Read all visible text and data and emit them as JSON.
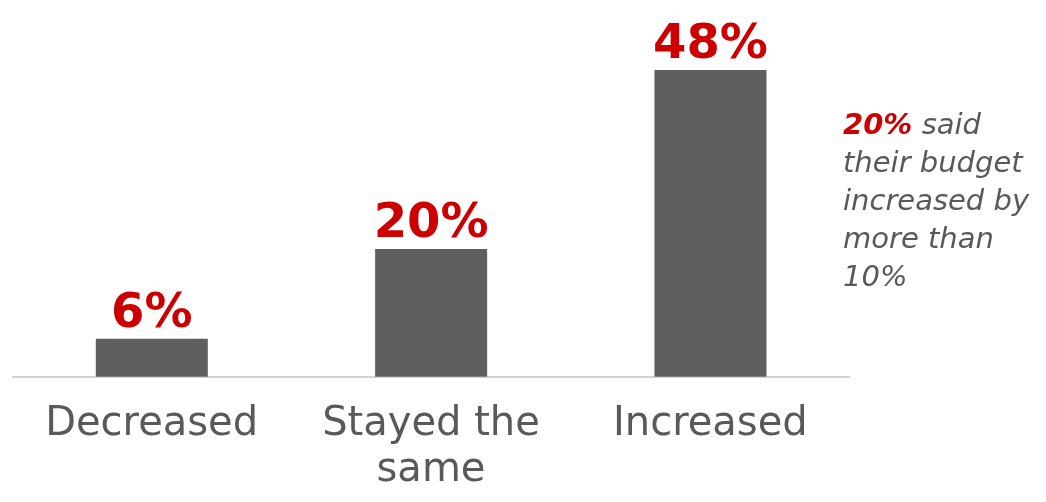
{
  "chart_data": {
    "type": "bar",
    "categories": [
      "Decreased",
      "Stayed the same",
      "Increased"
    ],
    "values": [
      6,
      20,
      48
    ],
    "color": "#5f5f5f",
    "value_labels": [
      "6%",
      "20%",
      "48%"
    ],
    "annotations": [
      "20% said their budget increased by more than 10%"
    ]
  }
}
